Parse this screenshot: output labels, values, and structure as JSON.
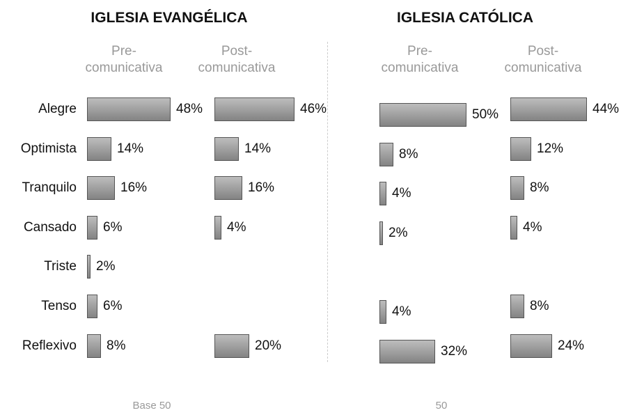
{
  "categories": [
    "Alegre",
    "Optimista",
    "Tranquilo",
    "Cansado",
    "Triste",
    "Tenso",
    "Reflexivo"
  ],
  "chart_data": [
    {
      "type": "hbar",
      "title": "IGLESIA EVANGÉLICA",
      "note": "Base 50",
      "series": [
        {
          "name": "Pre-comunicativa",
          "color": "#9a9a9a",
          "values": [
            48,
            14,
            16,
            6,
            2,
            6,
            8
          ],
          "value_labels": [
            "48%",
            "14%",
            "16%",
            "6%",
            "2%",
            "6%",
            "8%"
          ]
        },
        {
          "name": "Post-comunicativa",
          "color": "#9a9a9a",
          "values": [
            46,
            14,
            16,
            4,
            null,
            null,
            20
          ],
          "value_labels": [
            "46%",
            "14%",
            "16%",
            "4%",
            null,
            null,
            "20%"
          ]
        }
      ]
    },
    {
      "type": "hbar",
      "title": "IGLESIA CATÓLICA",
      "note": "50",
      "series": [
        {
          "name": "Pre-comunicativa",
          "color": "#9a9a9a",
          "values": [
            50,
            8,
            4,
            2,
            null,
            4,
            32
          ],
          "value_labels": [
            "50%",
            "8%",
            "4%",
            "2%",
            null,
            "4%",
            "32%"
          ]
        },
        {
          "name": "Post-comunicativa",
          "color": "#9a9a9a",
          "values": [
            44,
            12,
            8,
            4,
            null,
            8,
            24
          ],
          "value_labels": [
            "44%",
            "12%",
            "8%",
            "4%",
            null,
            "8%",
            "24%"
          ]
        }
      ]
    }
  ]
}
